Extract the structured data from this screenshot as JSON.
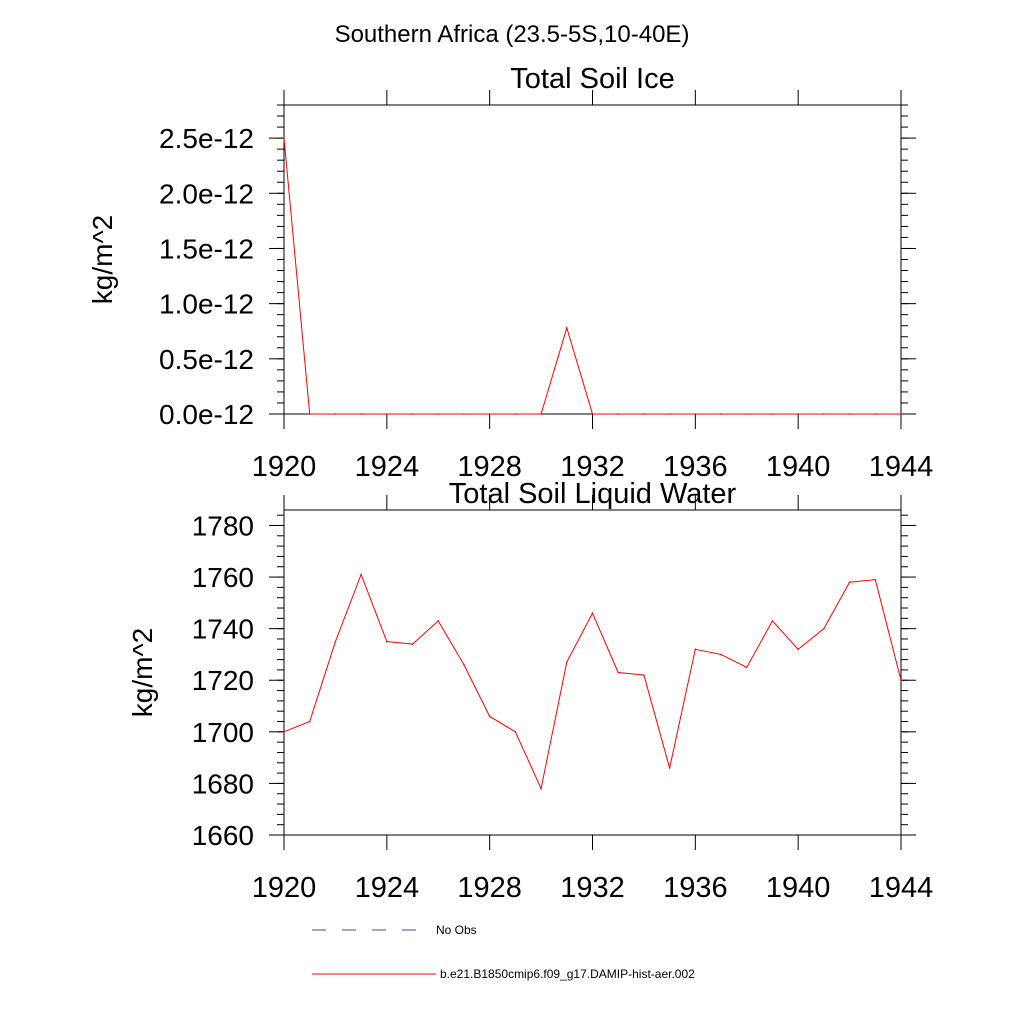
{
  "figure": {
    "title": "Southern Africa (23.5-5S,10-40E)"
  },
  "chart_data": [
    {
      "type": "line",
      "title": "Total Soil Ice",
      "xlabel": "",
      "ylabel": "kg/m^2",
      "xlim": [
        1920,
        1944
      ],
      "ylim": [
        0,
        2.8e-12
      ],
      "x_ticks": [
        1920,
        1924,
        1928,
        1932,
        1936,
        1940,
        1944
      ],
      "x_tick_labels": [
        "1920",
        "1924",
        "1928",
        "1932",
        "1936",
        "1940",
        "1944"
      ],
      "y_ticks": [
        0,
        5e-13,
        1e-12,
        1.5e-12,
        2e-12,
        2.5e-12
      ],
      "y_tick_labels": [
        "0.0e-12",
        "0.5e-12",
        "1.0e-12",
        "1.5e-12",
        "2.0e-12",
        "2.5e-12"
      ],
      "grid": false,
      "x": [
        1920,
        1921,
        1922,
        1923,
        1924,
        1925,
        1926,
        1927,
        1928,
        1929,
        1930,
        1931,
        1932,
        1933,
        1934,
        1935,
        1936,
        1937,
        1938,
        1939,
        1940,
        1941,
        1942,
        1943,
        1944
      ],
      "series": [
        {
          "color": "#ff0000",
          "values": [
            2.5e-12,
            0,
            0,
            0,
            0,
            0,
            0,
            0,
            0,
            0,
            0,
            7.8e-13,
            0,
            0,
            0,
            0,
            0,
            0,
            0,
            0,
            0,
            0,
            0,
            0,
            0
          ]
        }
      ]
    },
    {
      "type": "line",
      "title": "Total Soil Liquid Water",
      "xlabel": "",
      "ylabel": "kg/m^2",
      "xlim": [
        1920,
        1944
      ],
      "ylim": [
        1660,
        1786
      ],
      "x_ticks": [
        1920,
        1924,
        1928,
        1932,
        1936,
        1940,
        1944
      ],
      "x_tick_labels": [
        "1920",
        "1924",
        "1928",
        "1932",
        "1936",
        "1940",
        "1944"
      ],
      "y_ticks": [
        1660,
        1680,
        1700,
        1720,
        1740,
        1760,
        1780
      ],
      "y_tick_labels": [
        "1660",
        "1680",
        "1700",
        "1720",
        "1740",
        "1760",
        "1780"
      ],
      "grid": false,
      "x": [
        1920,
        1921,
        1922,
        1923,
        1924,
        1925,
        1926,
        1927,
        1928,
        1929,
        1930,
        1931,
        1932,
        1933,
        1934,
        1935,
        1936,
        1937,
        1938,
        1939,
        1940,
        1941,
        1942,
        1943,
        1944
      ],
      "series": [
        {
          "color": "#ff0000",
          "values": [
            1700,
            1704,
            1735,
            1761,
            1735,
            1734,
            1743,
            1726,
            1706,
            1700,
            1678,
            1727,
            1746,
            1723,
            1722,
            1686,
            1732,
            1730,
            1725,
            1743,
            1732,
            1740,
            1758,
            1759,
            1720
          ]
        }
      ]
    }
  ],
  "legend": {
    "placement": "bottom-left",
    "entries": [
      {
        "label": "No Obs",
        "style": "dashed",
        "color": "#4d4d8a"
      },
      {
        "label": "b.e21.B1850cmip6.f09_g17.DAMIP-hist-aer.002",
        "style": "solid",
        "color": "#ff0000"
      }
    ]
  }
}
